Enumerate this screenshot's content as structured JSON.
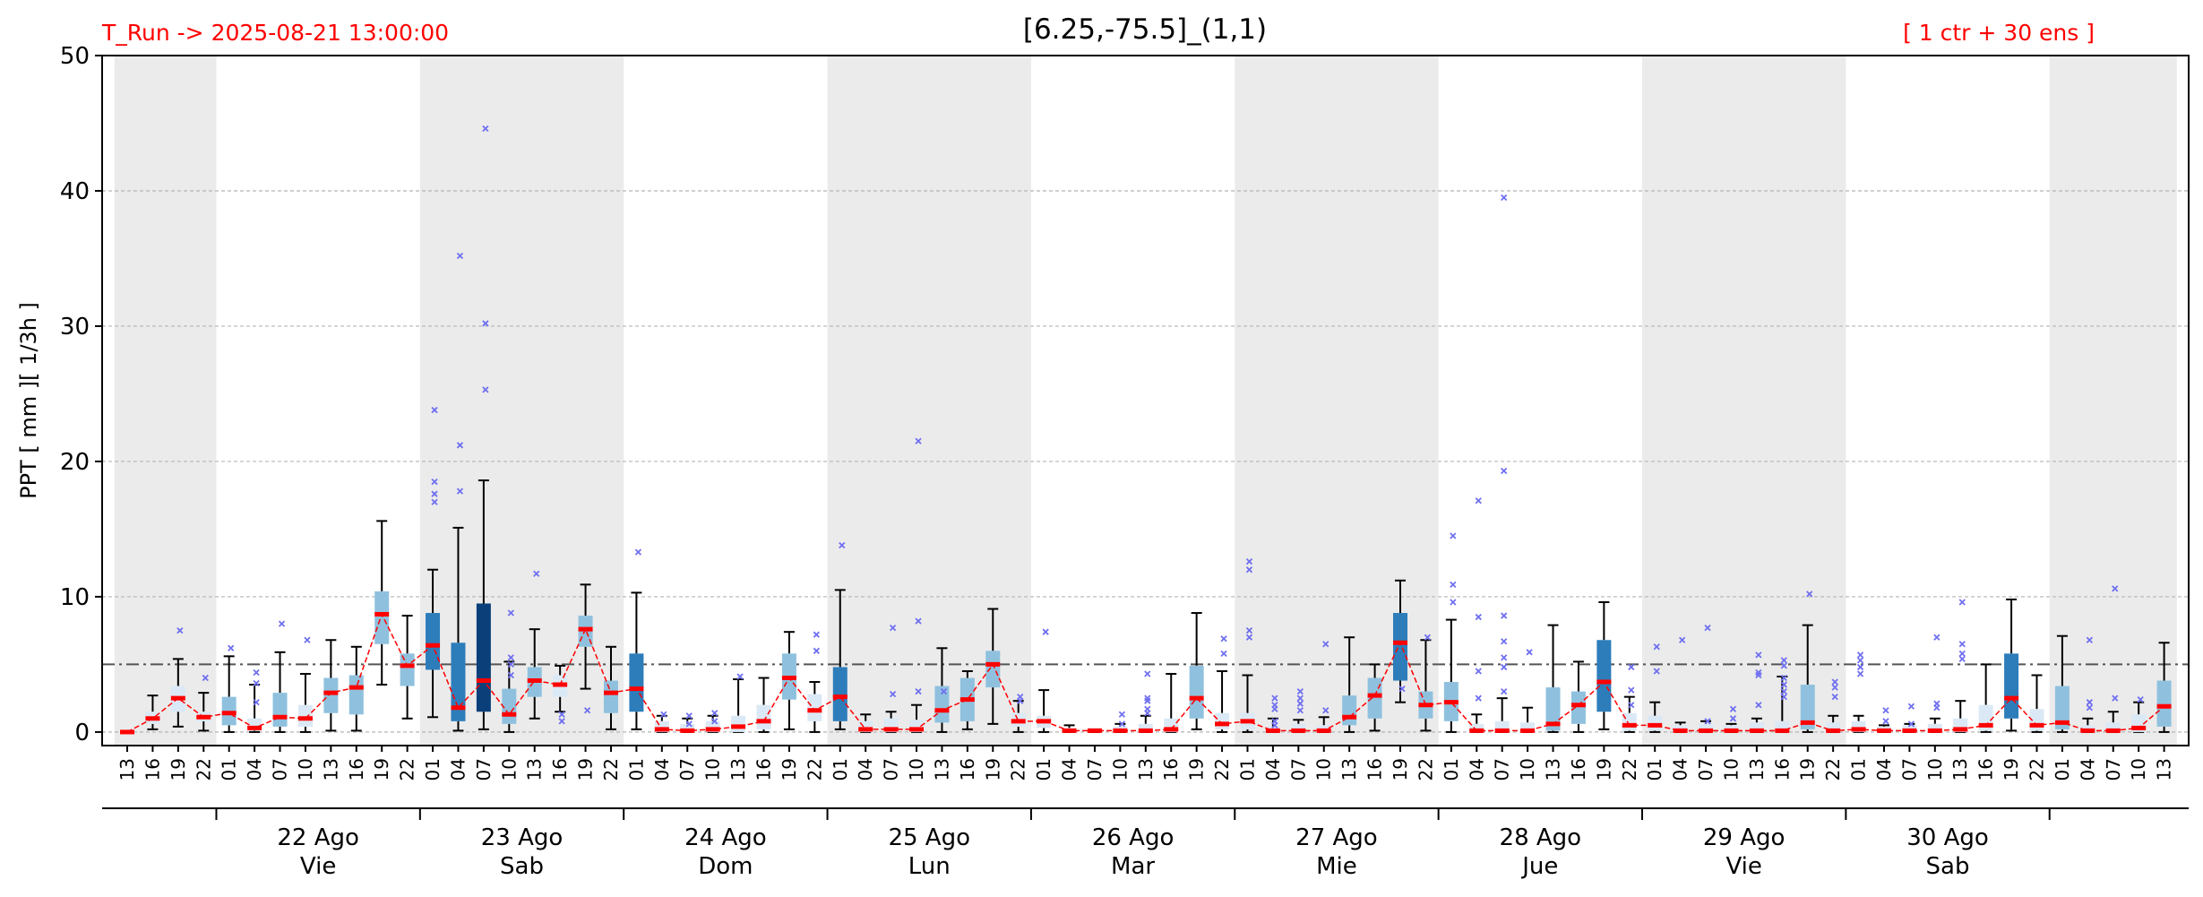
{
  "header": {
    "run_label": "T_Run -> 2025-08-21  13:00:00",
    "title": "[6.25,-75.5]_(1,1)",
    "members_label": "[ 1 ctr + 30 ens ]"
  },
  "colors": {
    "header_text": "#ff0000",
    "median": "#ff0000",
    "mean_line": "#ff0000",
    "outlier": "#6f6ff0",
    "threshold": "#555555",
    "shade": "#ebebeb",
    "box_light": "#dbe9f6",
    "box_mid": "#8fc1de",
    "box_strong": "#2d7dbb",
    "box_dark": "#0b3f7a"
  },
  "chart_data": {
    "type": "box",
    "ylabel": "PPT  [ mm ][ 1/3h ]",
    "ylim": [
      0,
      50
    ],
    "yticks": [
      0,
      10,
      20,
      30,
      40,
      50
    ],
    "grid": true,
    "threshold": 5,
    "hours": [
      "13",
      "16",
      "19",
      "22",
      "01",
      "04",
      "07",
      "10",
      "13",
      "16",
      "19",
      "22",
      "01",
      "04",
      "07",
      "10",
      "13",
      "16",
      "19",
      "22",
      "01",
      "04",
      "07",
      "10",
      "13",
      "16",
      "19",
      "22",
      "01",
      "04",
      "07",
      "10",
      "13",
      "16",
      "19",
      "22",
      "01",
      "04",
      "07",
      "10",
      "13",
      "16",
      "19",
      "22",
      "01",
      "04",
      "07",
      "10",
      "13",
      "16",
      "19",
      "22",
      "01",
      "04",
      "07",
      "10",
      "13",
      "16",
      "19",
      "22",
      "01",
      "04",
      "07",
      "10",
      "13",
      "16",
      "19",
      "22",
      "01",
      "04",
      "07",
      "10",
      "13",
      "16",
      "19",
      "22",
      "01",
      "04",
      "07",
      "10",
      "13"
    ],
    "days": [
      {
        "date": "22 Ago",
        "weekday": "Vie"
      },
      {
        "date": "23 Ago",
        "weekday": "Sab"
      },
      {
        "date": "24 Ago",
        "weekday": "Dom"
      },
      {
        "date": "25 Ago",
        "weekday": "Lun"
      },
      {
        "date": "26 Ago",
        "weekday": "Mar"
      },
      {
        "date": "27 Ago",
        "weekday": "Mie"
      },
      {
        "date": "28 Ago",
        "weekday": "Jue"
      },
      {
        "date": "29 Ago",
        "weekday": "Vie"
      },
      {
        "date": "30 Ago",
        "weekday": "Sab"
      }
    ],
    "medians": [
      0,
      1,
      2.5,
      1.1,
      1.4,
      0.3,
      1.1,
      1,
      2.9,
      3.3,
      8.7,
      4.9,
      6.4,
      1.8,
      3.8,
      1.3,
      3.8,
      3.5,
      7.6,
      2.9,
      3.2,
      0.2,
      0.1,
      0.2,
      0.4,
      0.8,
      4,
      1.6,
      2.6,
      0.2,
      0.2,
      0.2,
      1.6,
      2.4,
      5,
      0.8,
      0.8,
      0.1,
      0.1,
      0.1,
      0.1,
      0.2,
      2.5,
      0.6,
      0.8,
      0.1,
      0.1,
      0.1,
      1.1,
      2.7,
      6.6,
      2,
      2.2,
      0.1,
      0.1,
      0.1,
      0.6,
      2,
      3.7,
      0.5,
      0.5,
      0.1,
      0.1,
      0.1,
      0.1,
      0.1,
      0.7,
      0.1,
      0.2,
      0.1,
      0.1,
      0.1,
      0.2,
      0.5,
      2.5,
      0.5,
      0.7,
      0.1,
      0.1,
      0.3,
      1.9
    ],
    "q1": [
      0,
      0.6,
      1.5,
      0.8,
      0.5,
      0.1,
      0.4,
      0.4,
      1.4,
      1.3,
      6.5,
      3.4,
      4.6,
      0.8,
      1.5,
      0.6,
      2.6,
      2.6,
      6.3,
      1.4,
      1.5,
      0,
      0,
      0,
      0,
      0.2,
      2.4,
      0.8,
      0.8,
      0,
      0,
      0,
      0.7,
      0.8,
      3.3,
      0.4,
      0.3,
      0,
      0,
      0,
      0,
      0,
      1,
      0.2,
      0.2,
      0,
      0,
      0,
      0.5,
      1,
      3.8,
      1,
      0.8,
      0,
      0,
      0,
      0.1,
      0.6,
      1.5,
      0.1,
      0.1,
      0,
      0,
      0,
      0,
      0,
      0.2,
      0,
      0,
      0,
      0,
      0,
      0,
      0.1,
      1,
      0.1,
      0.2,
      0,
      0,
      0,
      0.4
    ],
    "q3": [
      0,
      1.5,
      3.4,
      1.5,
      2.6,
      1,
      2.9,
      2,
      4,
      4.2,
      10.4,
      5.8,
      8.8,
      6.6,
      9.5,
      3.2,
      4.8,
      4.2,
      8.6,
      3.8,
      5.8,
      0.8,
      0.6,
      0.8,
      1.2,
      2,
      5.8,
      2.8,
      4.8,
      0.8,
      1,
      0.9,
      3.4,
      4,
      6,
      1.4,
      1.2,
      0.3,
      0.3,
      0.4,
      0.6,
      1,
      4.9,
      1.4,
      1.4,
      0.4,
      0.6,
      0.5,
      2.7,
      4,
      8.8,
      3,
      3.7,
      0.6,
      0.8,
      0.7,
      3.3,
      3,
      6.8,
      1.4,
      1.2,
      0.5,
      0.6,
      0.5,
      0.7,
      0.8,
      3.5,
      0.7,
      0.8,
      0.4,
      0.5,
      0.6,
      1,
      2,
      5.8,
      1.7,
      3.4,
      0.5,
      0.7,
      1.3,
      3.8
    ],
    "whisker_low": [
      0,
      0.2,
      0.4,
      0.1,
      0,
      0,
      0,
      0,
      0.1,
      0.1,
      3.5,
      1,
      1.1,
      0.1,
      0.2,
      0,
      1,
      1.5,
      3.2,
      0.2,
      0.2,
      0,
      0,
      0,
      0,
      0,
      0.2,
      0,
      0.2,
      0,
      0,
      0,
      0,
      0.2,
      0.6,
      0,
      0,
      0,
      0,
      0,
      0,
      0,
      0.2,
      0,
      0,
      0,
      0,
      0,
      0,
      0.1,
      2.2,
      0.1,
      0,
      0,
      0,
      0,
      0,
      0,
      0.2,
      0,
      0,
      0,
      0,
      0,
      0,
      0,
      0,
      0,
      0,
      0,
      0,
      0,
      0,
      0,
      0.1,
      0,
      0,
      0,
      0,
      0,
      0
    ],
    "whisker_high": [
      0,
      2.7,
      5.4,
      2.9,
      5.6,
      3.5,
      5.9,
      4.3,
      6.8,
      6.3,
      15.6,
      8.6,
      12,
      15.1,
      18.6,
      5.2,
      7.6,
      4.9,
      10.9,
      6.3,
      10.3,
      1.2,
      1,
      1.2,
      3.9,
      4,
      7.4,
      3.7,
      10.5,
      1.3,
      1.5,
      2,
      6.2,
      4.5,
      9.1,
      2.3,
      3.1,
      0.5,
      0.3,
      0.6,
      1.2,
      4.3,
      8.8,
      4.5,
      4.2,
      1,
      0.9,
      1.1,
      7,
      5,
      11.2,
      6.8,
      8.3,
      1.3,
      2.5,
      1.8,
      7.9,
      5.2,
      9.6,
      2.6,
      2.2,
      0.7,
      0.8,
      0.6,
      1,
      4.1,
      7.9,
      1.2,
      1.2,
      0.5,
      0.6,
      1,
      2.3,
      5,
      9.8,
      4.2,
      7.1,
      1,
      1.5,
      2.2,
      6.6
    ],
    "outliers": [
      {
        "i": 2,
        "v": [
          7.5
        ]
      },
      {
        "i": 3,
        "v": [
          4
        ]
      },
      {
        "i": 4,
        "v": [
          6.2
        ]
      },
      {
        "i": 5,
        "v": [
          4.4,
          3.6,
          2.2
        ]
      },
      {
        "i": 6,
        "v": [
          8
        ]
      },
      {
        "i": 7,
        "v": [
          6.8
        ]
      },
      {
        "i": 12,
        "v": [
          23.8,
          18.5,
          17.6,
          17
        ]
      },
      {
        "i": 13,
        "v": [
          35.2,
          21.2,
          17.8
        ]
      },
      {
        "i": 14,
        "v": [
          44.6,
          30.2,
          25.3
        ]
      },
      {
        "i": 15,
        "v": [
          8.8,
          5.5,
          5,
          4.2
        ]
      },
      {
        "i": 16,
        "v": [
          11.7
        ]
      },
      {
        "i": 17,
        "v": [
          1.3,
          0.8
        ]
      },
      {
        "i": 18,
        "v": [
          1.6
        ]
      },
      {
        "i": 20,
        "v": [
          13.3
        ]
      },
      {
        "i": 21,
        "v": [
          1.3
        ]
      },
      {
        "i": 22,
        "v": [
          1.2,
          0.6
        ]
      },
      {
        "i": 23,
        "v": [
          1.4,
          0.8
        ]
      },
      {
        "i": 24,
        "v": [
          4.1
        ]
      },
      {
        "i": 27,
        "v": [
          7.2,
          6
        ]
      },
      {
        "i": 28,
        "v": [
          13.8
        ]
      },
      {
        "i": 30,
        "v": [
          7.7,
          2.8
        ]
      },
      {
        "i": 31,
        "v": [
          21.5,
          8.2,
          3
        ]
      },
      {
        "i": 32,
        "v": [
          3
        ]
      },
      {
        "i": 35,
        "v": [
          2.6,
          2.3
        ]
      },
      {
        "i": 36,
        "v": [
          7.4
        ]
      },
      {
        "i": 39,
        "v": [
          1.3,
          0.6
        ]
      },
      {
        "i": 40,
        "v": [
          4.3,
          2.5,
          2.3,
          1.7,
          1.4
        ]
      },
      {
        "i": 43,
        "v": [
          6.9,
          5.8
        ]
      },
      {
        "i": 44,
        "v": [
          12.6,
          12,
          7.5,
          7
        ]
      },
      {
        "i": 45,
        "v": [
          2.5,
          2,
          1.7,
          0.8,
          0.5
        ]
      },
      {
        "i": 46,
        "v": [
          3,
          2.5,
          2.1,
          1.6
        ]
      },
      {
        "i": 47,
        "v": [
          6.5,
          1.6
        ]
      },
      {
        "i": 50,
        "v": [
          3.2
        ]
      },
      {
        "i": 51,
        "v": [
          7
        ]
      },
      {
        "i": 52,
        "v": [
          14.5,
          10.9,
          9.6
        ]
      },
      {
        "i": 53,
        "v": [
          17.1,
          8.5,
          4.5,
          2.5
        ]
      },
      {
        "i": 54,
        "v": [
          39.5,
          19.3,
          8.6,
          6.7,
          5.5,
          4.8,
          3
        ]
      },
      {
        "i": 55,
        "v": [
          5.9
        ]
      },
      {
        "i": 59,
        "v": [
          4.8,
          3.1,
          2
        ]
      },
      {
        "i": 60,
        "v": [
          6.3,
          4.5
        ]
      },
      {
        "i": 61,
        "v": [
          6.8
        ]
      },
      {
        "i": 62,
        "v": [
          7.7,
          0.8
        ]
      },
      {
        "i": 63,
        "v": [
          1.7,
          1
        ]
      },
      {
        "i": 64,
        "v": [
          5.7,
          4.4,
          4.2,
          2
        ]
      },
      {
        "i": 65,
        "v": [
          5.3,
          4.9,
          4,
          3.5,
          3,
          2.6
        ]
      },
      {
        "i": 66,
        "v": [
          10.2
        ]
      },
      {
        "i": 67,
        "v": [
          3.7,
          3.3,
          2.6
        ]
      },
      {
        "i": 68,
        "v": [
          5.7,
          5.3,
          4.8,
          4.3
        ]
      },
      {
        "i": 69,
        "v": [
          1.6,
          0.8
        ]
      },
      {
        "i": 70,
        "v": [
          1.9,
          0.6
        ]
      },
      {
        "i": 71,
        "v": [
          7,
          2.1,
          1.8
        ]
      },
      {
        "i": 72,
        "v": [
          9.6,
          6.5,
          5.8,
          5.4
        ]
      },
      {
        "i": 77,
        "v": [
          6.8,
          2.2,
          1.8
        ]
      },
      {
        "i": 78,
        "v": [
          10.6,
          2.5
        ]
      },
      {
        "i": 79,
        "v": [
          2.4
        ]
      }
    ]
  }
}
